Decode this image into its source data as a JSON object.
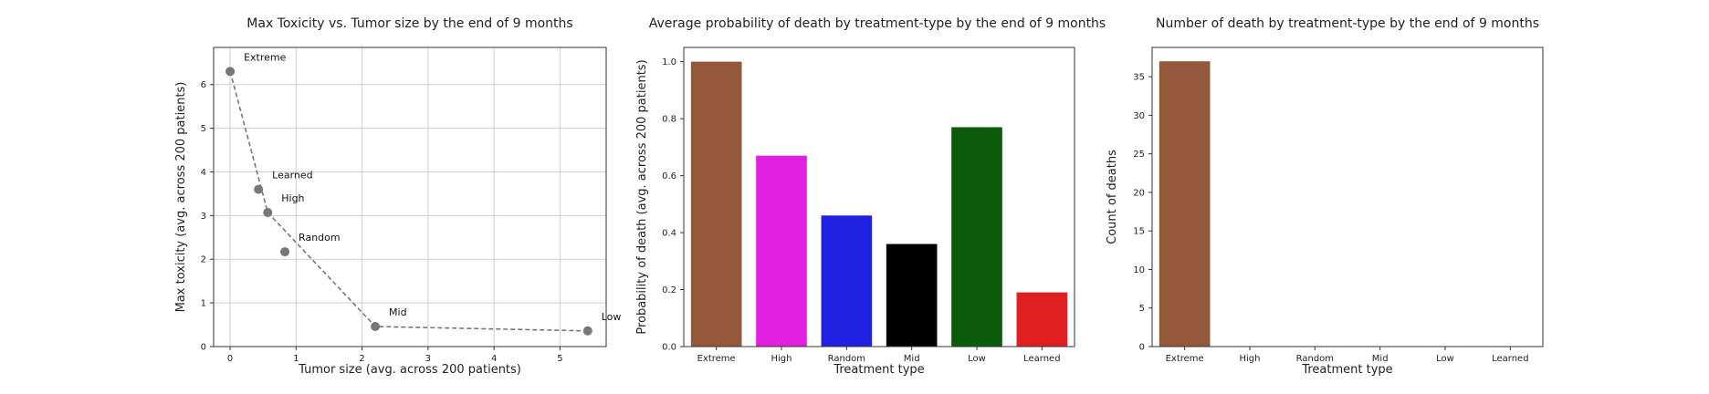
{
  "chart_data": [
    {
      "type": "scatter",
      "title": "Max Toxicity vs. Tumor size by the end of 9 months",
      "xlabel": "Tumor size (avg. across 200 patients)",
      "ylabel": "Max toxicity (avg. across 200 patients)",
      "xlim": [
        -0.25,
        5.7
      ],
      "ylim": [
        0,
        6.85
      ],
      "xticks": [
        0,
        1,
        2,
        3,
        4,
        5
      ],
      "yticks": [
        0,
        1,
        2,
        3,
        4,
        5,
        6
      ],
      "grid": true,
      "points": [
        {
          "label": "Extreme",
          "x": 0.0,
          "y": 6.3
        },
        {
          "label": "Learned",
          "x": 0.43,
          "y": 3.6
        },
        {
          "label": "High",
          "x": 0.57,
          "y": 3.07
        },
        {
          "label": "Random",
          "x": 0.83,
          "y": 2.17
        },
        {
          "label": "Mid",
          "x": 2.2,
          "y": 0.46
        },
        {
          "label": "Low",
          "x": 5.42,
          "y": 0.36
        }
      ],
      "frontier": [
        "Extreme",
        "High",
        "Mid",
        "Low"
      ],
      "point_color": "#777777",
      "line_color": "#777777"
    },
    {
      "type": "bar",
      "title": "Average probability of death by treatment-type by the end of 9 months",
      "xlabel": "Treatment type",
      "ylabel": "Probability of death (avg. across 200 patients)",
      "ylim": [
        0,
        1.05
      ],
      "yticks": [
        0.0,
        0.2,
        0.4,
        0.6,
        0.8,
        1.0
      ],
      "categories": [
        "Extreme",
        "High",
        "Random",
        "Mid",
        "Low",
        "Learned"
      ],
      "values": [
        1.0,
        0.67,
        0.46,
        0.36,
        0.77,
        0.19
      ],
      "colors": [
        "#93573a",
        "#e01fe0",
        "#2020e0",
        "#000000",
        "#0c5a0c",
        "#e02020"
      ],
      "grid": false
    },
    {
      "type": "bar",
      "title": "Number of death by treatment-type by the end of 9 months",
      "xlabel": "Treatment type",
      "ylabel": "Count of deaths",
      "ylim": [
        0,
        38.8
      ],
      "yticks": [
        0,
        5,
        10,
        15,
        20,
        25,
        30,
        35
      ],
      "categories": [
        "Extreme",
        "High",
        "Random",
        "Mid",
        "Low",
        "Learned"
      ],
      "values": [
        37,
        0,
        0,
        0,
        0,
        0
      ],
      "colors": [
        "#93573a",
        "#e01fe0",
        "#2020e0",
        "#000000",
        "#0c5a0c",
        "#e02020"
      ],
      "grid": false
    }
  ]
}
